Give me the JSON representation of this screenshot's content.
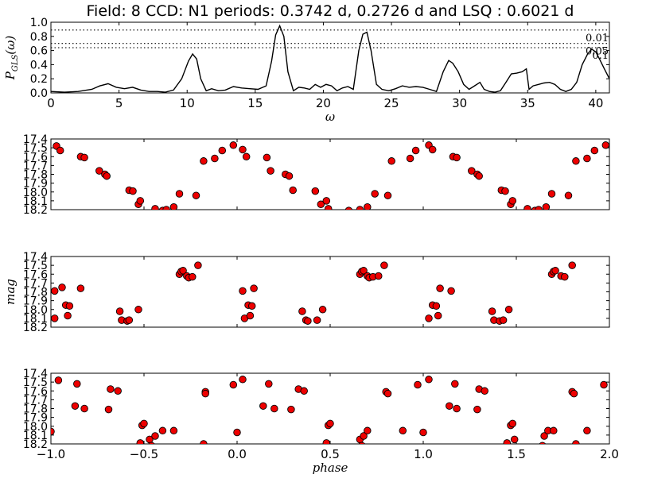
{
  "title": "Field: 8  CCD: N1   periods: 0.3742 d,   0.2726 d   and   LSQ : 0.6021 d",
  "chart_data": [
    {
      "type": "line",
      "xlabel": "ω",
      "ylabel": "P_GLS(ω)",
      "xlim": [
        0,
        41
      ],
      "ylim": [
        0,
        1.0
      ],
      "xticks": [
        "0",
        "5",
        "10",
        "15",
        "20",
        "25",
        "30",
        "35",
        "40"
      ],
      "yticks": [
        "0.0",
        "0.2",
        "0.4",
        "0.6",
        "0.8",
        "1.0"
      ],
      "hlines": [
        {
          "y": 0.89,
          "label": "0.01"
        },
        {
          "y": 0.7,
          "label": "0.05"
        },
        {
          "y": 0.64,
          "label": "0.1"
        }
      ],
      "x": [
        0,
        1,
        2,
        3,
        3.6,
        4.2,
        4.8,
        5.4,
        6,
        6.6,
        7.2,
        7.8,
        8.4,
        9,
        9.6,
        10.1,
        10.4,
        10.7,
        11,
        11.4,
        11.8,
        12.3,
        12.8,
        13.4,
        14,
        14.6,
        15.2,
        15.8,
        16.2,
        16.5,
        16.8,
        17.1,
        17.4,
        17.8,
        18.2,
        18.6,
        19,
        19.4,
        19.8,
        20.2,
        20.6,
        21,
        21.4,
        21.8,
        22.2,
        22.6,
        22.9,
        23.2,
        23.5,
        23.9,
        24.3,
        24.8,
        25.3,
        25.8,
        26.3,
        26.8,
        27.3,
        27.8,
        28.3,
        28.8,
        29.2,
        29.5,
        29.9,
        30.3,
        30.7,
        31.1,
        31.5,
        31.8,
        32.2,
        32.6,
        33,
        33.4,
        33.8,
        34.2,
        34.6,
        34.9,
        35.1,
        35.4,
        35.8,
        36.2,
        36.6,
        37,
        37.4,
        37.8,
        38.2,
        38.6,
        39,
        39.4,
        39.7,
        40,
        40.3,
        40.6,
        41
      ],
      "y": [
        0.02,
        0.01,
        0.02,
        0.05,
        0.1,
        0.13,
        0.08,
        0.06,
        0.08,
        0.04,
        0.02,
        0.02,
        0.01,
        0.04,
        0.2,
        0.45,
        0.55,
        0.48,
        0.2,
        0.03,
        0.06,
        0.03,
        0.04,
        0.09,
        0.07,
        0.06,
        0.05,
        0.1,
        0.45,
        0.82,
        0.95,
        0.8,
        0.3,
        0.03,
        0.08,
        0.07,
        0.05,
        0.12,
        0.08,
        0.12,
        0.1,
        0.03,
        0.07,
        0.09,
        0.05,
        0.6,
        0.83,
        0.86,
        0.6,
        0.12,
        0.05,
        0.03,
        0.06,
        0.1,
        0.08,
        0.09,
        0.08,
        0.05,
        0.02,
        0.3,
        0.46,
        0.42,
        0.3,
        0.12,
        0.05,
        0.1,
        0.15,
        0.05,
        0.02,
        0.01,
        0.03,
        0.15,
        0.27,
        0.28,
        0.3,
        0.34,
        0.05,
        0.1,
        0.12,
        0.14,
        0.15,
        0.12,
        0.05,
        0.02,
        0.05,
        0.15,
        0.4,
        0.55,
        0.62,
        0.58,
        0.47,
        0.35,
        0.2
      ]
    },
    {
      "type": "scatter",
      "ylabel": "",
      "xlim": [
        -1.0,
        2.0
      ],
      "ylim": [
        18.2,
        17.4
      ],
      "yticks": [
        "17.4",
        "17.5",
        "17.6",
        "17.7",
        "17.8",
        "17.9",
        "18.0",
        "18.1",
        "18.2"
      ],
      "x": [
        -0.97,
        -0.95,
        -0.84,
        -0.82,
        -0.74,
        -0.71,
        -0.7,
        -0.58,
        -0.56,
        -0.53,
        -0.52,
        -0.44,
        -0.4,
        -0.38,
        -0.34,
        -0.31,
        -0.22,
        -0.18,
        -0.12,
        -0.08,
        -0.02,
        0.03,
        0.05,
        0.16,
        0.18,
        0.26,
        0.28,
        0.3,
        0.42,
        0.45,
        0.48,
        0.49,
        0.6,
        0.66,
        0.7,
        0.74,
        0.81,
        0.83,
        0.93,
        0.96,
        1.03,
        1.05,
        1.16,
        1.18,
        1.26,
        1.29,
        1.3,
        1.42,
        1.44,
        1.47,
        1.48,
        1.56,
        1.6,
        1.62,
        1.66,
        1.69,
        1.78,
        1.82,
        1.88,
        1.92,
        1.98,
        2.03
      ],
      "y": [
        17.48,
        17.53,
        17.6,
        17.61,
        17.76,
        17.8,
        17.82,
        17.98,
        17.99,
        18.14,
        18.1,
        18.19,
        18.21,
        18.2,
        18.17,
        18.02,
        18.04,
        17.65,
        17.62,
        17.53,
        17.47,
        17.52,
        17.6,
        17.61,
        17.76,
        17.8,
        17.82,
        17.98,
        17.99,
        18.14,
        18.1,
        18.19,
        18.21,
        18.2,
        18.17,
        18.02,
        18.04,
        17.65,
        17.62,
        17.53,
        17.47,
        17.52,
        17.6,
        17.61,
        17.76,
        17.8,
        17.82,
        17.98,
        17.99,
        18.14,
        18.1,
        18.19,
        18.21,
        18.2,
        18.17,
        18.02,
        18.04,
        17.65,
        17.62,
        17.53,
        17.47,
        17.52
      ]
    },
    {
      "type": "scatter",
      "ylabel": "mag",
      "xlim": [
        -1.0,
        2.0
      ],
      "ylim": [
        18.2,
        17.4
      ],
      "yticks": [
        "17.4",
        "17.5",
        "17.6",
        "17.7",
        "17.8",
        "17.9",
        "18.0",
        "18.1",
        "18.2"
      ],
      "x": [
        -0.98,
        -0.98,
        -0.94,
        -0.92,
        -0.91,
        -0.9,
        -0.84,
        -0.63,
        -0.62,
        -0.59,
        -0.58,
        -0.53,
        -0.31,
        -0.3,
        -0.29,
        -0.27,
        -0.26,
        -0.24,
        -0.21,
        0.03,
        0.04,
        0.06,
        0.07,
        0.08,
        0.09,
        0.35,
        0.37,
        0.38,
        0.43,
        0.46,
        0.66,
        0.67,
        0.68,
        0.7,
        0.71,
        0.73,
        0.76,
        0.79,
        1.03,
        1.05,
        1.07,
        1.08,
        1.09,
        1.15,
        1.37,
        1.38,
        1.41,
        1.43,
        1.46,
        1.69,
        1.7,
        1.71,
        1.74,
        1.76,
        1.8
      ],
      "y": [
        18.1,
        17.79,
        17.75,
        17.95,
        18.07,
        17.96,
        17.76,
        18.02,
        18.12,
        18.13,
        18.12,
        18.0,
        17.6,
        17.57,
        17.56,
        17.62,
        17.64,
        17.63,
        17.5,
        17.79,
        18.1,
        17.95,
        18.07,
        17.96,
        17.76,
        18.02,
        18.12,
        18.13,
        18.12,
        18.0,
        17.6,
        17.57,
        17.56,
        17.62,
        17.64,
        17.63,
        17.62,
        17.5,
        18.1,
        17.95,
        17.96,
        18.07,
        17.76,
        17.79,
        18.02,
        18.12,
        18.13,
        18.12,
        18.0,
        17.6,
        17.57,
        17.56,
        17.62,
        17.63,
        17.5
      ]
    },
    {
      "type": "scatter",
      "xlabel": "phase",
      "ylabel": "",
      "xlim": [
        -1.0,
        2.0
      ],
      "ylim": [
        18.2,
        17.4
      ],
      "xticks": [
        "−1.0",
        "−0.5",
        "0.0",
        "0.5",
        "1.0",
        "1.5",
        "2.0"
      ],
      "yticks": [
        "17.4",
        "17.5",
        "17.6",
        "17.7",
        "17.8",
        "17.9",
        "18.0",
        "18.1",
        "18.2"
      ],
      "x": [
        -1.0,
        -0.96,
        -0.87,
        -0.86,
        -0.82,
        -0.69,
        -0.68,
        -0.64,
        -0.52,
        -0.51,
        -0.5,
        -0.47,
        -0.46,
        -0.44,
        -0.4,
        -0.34,
        -0.18,
        -0.17,
        -0.17,
        -0.02,
        0.0,
        0.03,
        0.14,
        0.17,
        0.2,
        0.29,
        0.33,
        0.36,
        0.48,
        0.49,
        0.5,
        0.66,
        0.67,
        0.68,
        0.7,
        0.8,
        0.81,
        0.89,
        0.97,
        1.0,
        1.03,
        1.14,
        1.17,
        1.18,
        1.29,
        1.3,
        1.33,
        1.45,
        1.47,
        1.48,
        1.49,
        1.64,
        1.65,
        1.67,
        1.7,
        1.8,
        1.81,
        1.82,
        1.88,
        1.97
      ],
      "y": [
        18.06,
        17.48,
        17.77,
        17.52,
        17.8,
        17.81,
        17.58,
        17.6,
        18.19,
        17.99,
        17.97,
        18.15,
        18.22,
        18.11,
        18.05,
        18.05,
        18.2,
        17.61,
        17.63,
        17.53,
        18.07,
        17.47,
        17.77,
        17.52,
        17.8,
        17.81,
        17.58,
        17.6,
        18.19,
        17.99,
        17.97,
        18.15,
        18.22,
        18.11,
        18.05,
        17.61,
        17.63,
        18.05,
        17.53,
        18.07,
        17.47,
        17.77,
        17.52,
        17.8,
        17.81,
        17.58,
        17.6,
        18.19,
        17.99,
        17.97,
        18.15,
        18.22,
        18.11,
        18.05,
        18.05,
        17.61,
        17.63,
        18.2,
        18.05,
        17.53
      ]
    }
  ]
}
